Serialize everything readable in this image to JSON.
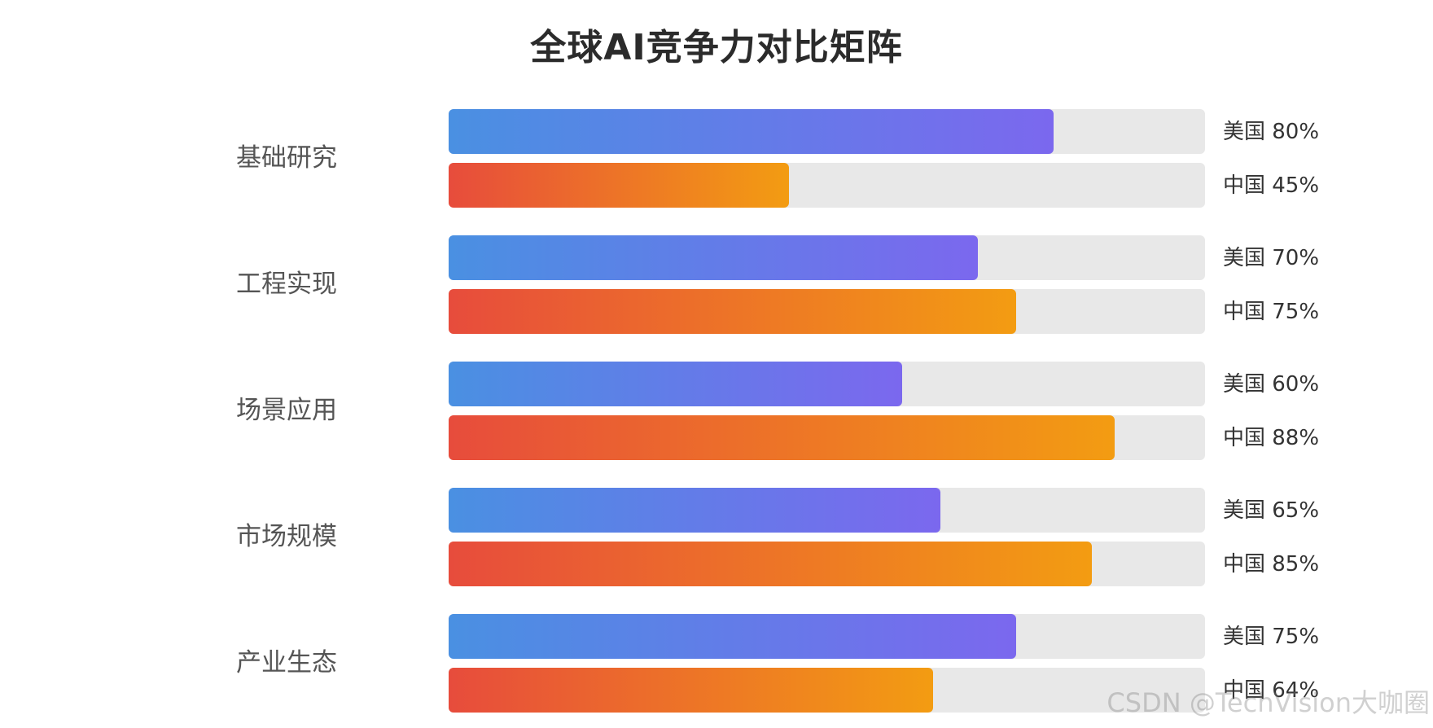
{
  "chart_data": {
    "type": "bar",
    "orientation": "horizontal",
    "title": "全球AI竞争力对比矩阵",
    "categories": [
      "基础研究",
      "工程实现",
      "场景应用",
      "市场规模",
      "产业生态"
    ],
    "series": [
      {
        "name": "美国",
        "values": [
          80,
          70,
          60,
          65,
          75
        ],
        "color_start": "#4a90e2",
        "color_end": "#7b68ee"
      },
      {
        "name": "中国",
        "values": [
          45,
          75,
          88,
          85,
          64
        ],
        "color_start": "#e74c3c",
        "color_end": "#f39c12"
      }
    ],
    "value_suffix": "%",
    "xlim": [
      0,
      100
    ],
    "track_color": "#e8e8e8",
    "grid": false
  },
  "watermark": "CSDN @TechVision大咖圈"
}
